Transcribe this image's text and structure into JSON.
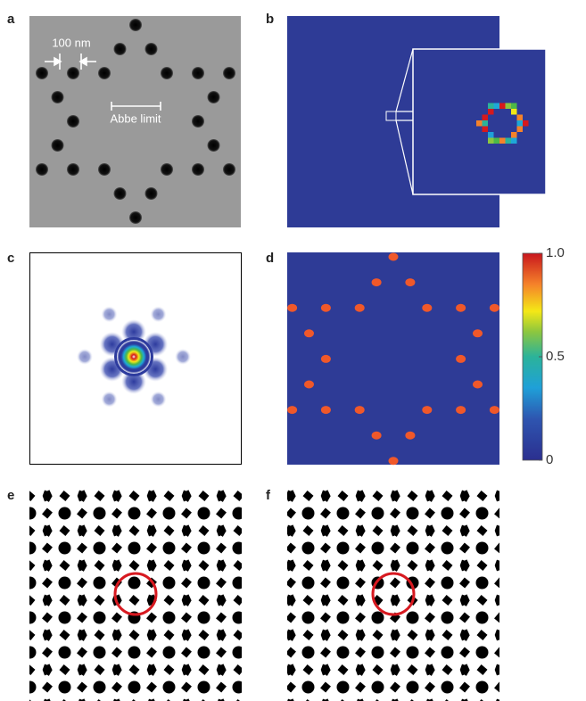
{
  "panels": [
    {
      "label": "a",
      "annotations": [
        "100 nm",
        "Abbe limit"
      ]
    },
    {
      "label": "b"
    },
    {
      "label": "c"
    },
    {
      "label": "d"
    },
    {
      "label": "e"
    },
    {
      "label": "f"
    }
  ],
  "colorbar": {
    "lim": [
      0,
      1
    ],
    "ticks": [
      {
        "value": 1,
        "label": "1.0"
      },
      0.5,
      0
    ]
  }
}
